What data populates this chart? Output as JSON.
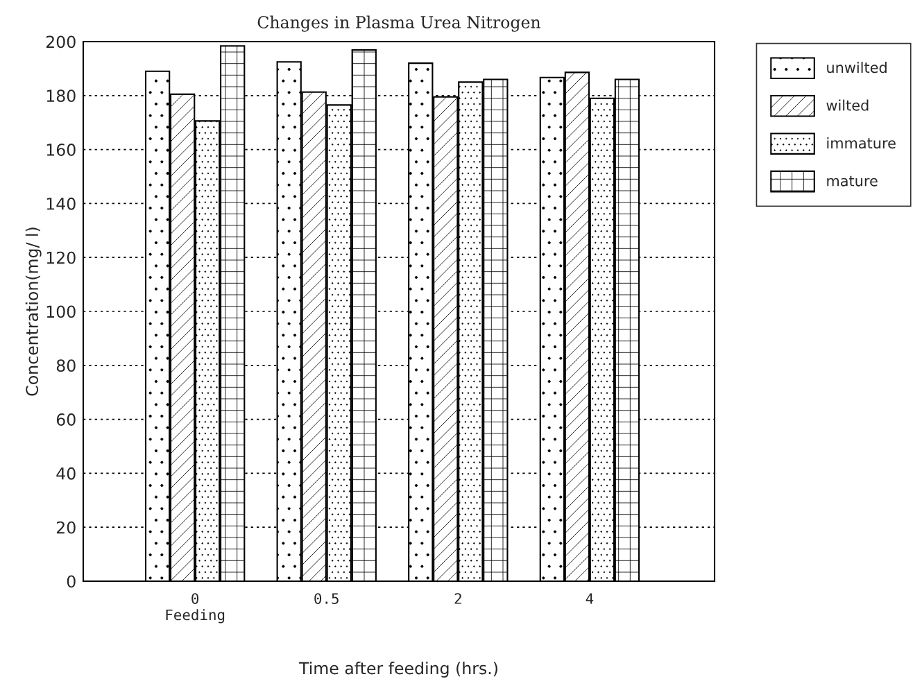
{
  "chart_data": {
    "type": "bar",
    "title": "Changes in Plasma Urea Nitrogen",
    "xlabel": "Time after feeding (hrs.)",
    "ylabel": "Concentration(mg/ l)",
    "categories": [
      "0\nFeeding",
      "0.5",
      "2",
      "4"
    ],
    "series": [
      {
        "name": "unwilted",
        "color": "#000000",
        "values": [
          189,
          192.5,
          192,
          186.7
        ]
      },
      {
        "name": "wilted",
        "color": "#000000",
        "values": [
          180.5,
          181.3,
          179.5,
          188.6
        ]
      },
      {
        "name": "immature",
        "color": "#000000",
        "values": [
          170.6,
          176.5,
          185,
          179
        ]
      },
      {
        "name": "mature",
        "color": "#000000",
        "values": [
          198.4,
          196.9,
          186,
          186
        ]
      }
    ],
    "ylim": [
      0,
      200
    ],
    "yticks": [
      0,
      20,
      40,
      60,
      80,
      100,
      120,
      140,
      160,
      180,
      200
    ],
    "grid": "y",
    "legend": "top right"
  }
}
